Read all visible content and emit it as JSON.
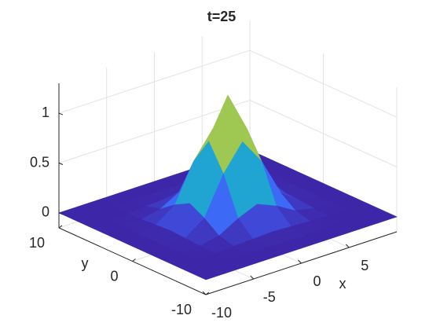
{
  "chart_data": {
    "type": "surface",
    "title": "t=25",
    "xlabel": "x",
    "ylabel": "y",
    "x": [
      -10,
      -8,
      -6,
      -4,
      -2,
      0,
      2,
      4,
      6,
      8,
      10
    ],
    "y": [
      -10,
      -8,
      -6,
      -4,
      -2,
      0,
      2,
      4,
      6,
      8,
      10
    ],
    "z": [
      [
        0,
        0,
        0,
        0,
        0,
        0,
        0,
        0,
        0,
        0,
        0
      ],
      [
        0,
        0,
        0,
        0,
        0,
        0,
        0,
        0,
        0,
        0,
        0
      ],
      [
        0,
        0,
        0,
        0.01,
        0.02,
        0.03,
        0.02,
        0.01,
        0,
        0,
        0
      ],
      [
        0,
        0,
        0.01,
        0.05,
        0.16,
        0.24,
        0.16,
        0.05,
        0.01,
        0,
        0
      ],
      [
        0,
        0,
        0.02,
        0.16,
        0.54,
        0.8,
        0.54,
        0.16,
        0.02,
        0,
        0
      ],
      [
        0,
        0,
        0.03,
        0.24,
        0.8,
        1.2,
        0.8,
        0.24,
        0.03,
        0,
        0
      ],
      [
        0,
        0,
        0.02,
        0.16,
        0.54,
        0.8,
        0.54,
        0.16,
        0.02,
        0,
        0
      ],
      [
        0,
        0,
        0.01,
        0.05,
        0.16,
        0.24,
        0.16,
        0.05,
        0.01,
        0,
        0
      ],
      [
        0,
        0,
        0,
        0.01,
        0.02,
        0.03,
        0.02,
        0.01,
        0,
        0,
        0
      ],
      [
        0,
        0,
        0,
        0,
        0,
        0,
        0,
        0,
        0,
        0,
        0
      ],
      [
        0,
        0,
        0,
        0,
        0,
        0,
        0,
        0,
        0,
        0,
        0
      ]
    ],
    "xlim": [
      -10,
      10
    ],
    "ylim": [
      -10,
      10
    ],
    "zlim": [
      -0.15,
      1.3
    ],
    "xticks": [
      -10,
      -5,
      0,
      5
    ],
    "yticks": [
      -10,
      0,
      10
    ],
    "zticks": [
      0,
      0.5,
      1
    ],
    "grid": true,
    "colormap": [
      "#3e26a8",
      "#4162fc",
      "#1f9fd8",
      "#27bdae",
      "#8ccb56",
      "#f3b93a",
      "#f9fb15"
    ]
  }
}
